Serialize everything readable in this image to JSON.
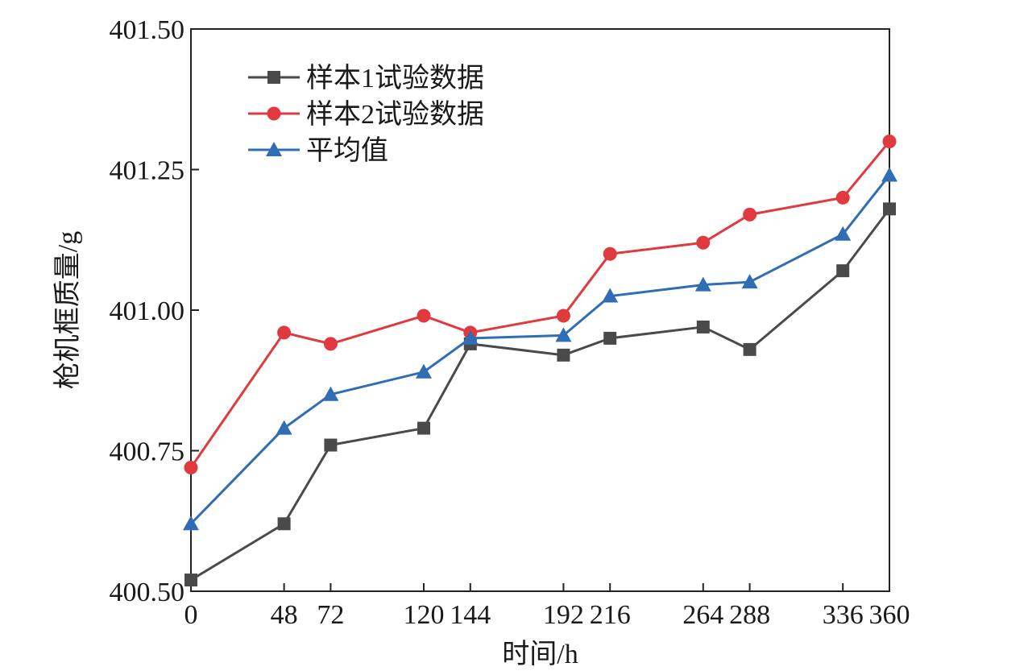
{
  "chart_data": {
    "type": "line",
    "title": "",
    "xlabel": "时间/h",
    "ylabel": "枪机框质量/g",
    "x": [
      0,
      48,
      72,
      120,
      144,
      192,
      216,
      264,
      288,
      336,
      360
    ],
    "x_tick_labels": [
      "0",
      "48",
      "72",
      "120",
      "144",
      "192",
      "216",
      "264",
      "288",
      "336",
      "360"
    ],
    "y_tick_labels": [
      "400.50",
      "400.75",
      "401.00",
      "401.25",
      "401.50"
    ],
    "y_ticks": [
      400.5,
      400.75,
      401.0,
      401.25,
      401.5
    ],
    "xlim": [
      0,
      360
    ],
    "ylim": [
      400.5,
      401.5
    ],
    "grid": false,
    "legend_position": "top-left",
    "series": [
      {
        "name": "样本1试验数据",
        "color": "#4a4a4a",
        "marker": "square",
        "values": [
          400.52,
          400.62,
          400.76,
          400.79,
          400.94,
          400.92,
          400.95,
          400.97,
          400.93,
          401.07,
          401.18
        ]
      },
      {
        "name": "样本2试验数据",
        "color": "#e0393e",
        "marker": "circle",
        "values": [
          400.72,
          400.96,
          400.94,
          400.99,
          400.96,
          400.99,
          401.1,
          401.12,
          401.17,
          401.2,
          401.3
        ]
      },
      {
        "name": "平均值",
        "color": "#2f6db5",
        "marker": "triangle",
        "values": [
          400.62,
          400.79,
          400.85,
          400.89,
          400.95,
          400.955,
          401.025,
          401.045,
          401.05,
          401.135,
          401.24
        ]
      }
    ]
  }
}
